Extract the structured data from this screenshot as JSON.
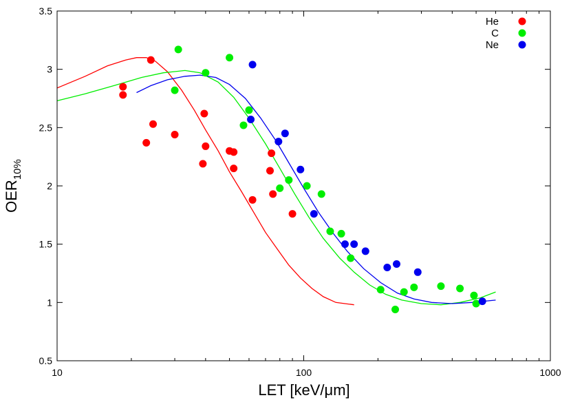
{
  "chart_data": {
    "type": "scatter",
    "xlabel": "LET [keV/μm]",
    "ylabel": "OER",
    "ylabel_sub": "10%",
    "x_scale": "log",
    "xlim": [
      10,
      1000
    ],
    "ylim": [
      0.5,
      3.5
    ],
    "x_ticks": [
      10,
      100,
      1000
    ],
    "x_tick_labels": [
      "10",
      "100",
      "1000"
    ],
    "y_ticks": [
      0.5,
      1,
      1.5,
      2,
      2.5,
      3,
      3.5
    ],
    "y_tick_labels": [
      "0.5",
      "1",
      "1.5",
      "2",
      "2.5",
      "3",
      "3.5"
    ],
    "grid": false,
    "legend_position": "top-right",
    "series": [
      {
        "name": "He",
        "color": "#ff0000",
        "points": [
          [
            18.5,
            2.85
          ],
          [
            18.5,
            2.78
          ],
          [
            23,
            2.37
          ],
          [
            24,
            3.08
          ],
          [
            24.5,
            2.53
          ],
          [
            30,
            2.44
          ],
          [
            39,
            2.19
          ],
          [
            39.5,
            2.62
          ],
          [
            40,
            2.34
          ],
          [
            50,
            2.3
          ],
          [
            52,
            2.29
          ],
          [
            52,
            2.15
          ],
          [
            62,
            1.88
          ],
          [
            73,
            2.13
          ],
          [
            74,
            2.28
          ],
          [
            75,
            1.93
          ],
          [
            90,
            1.76
          ]
        ],
        "curve": [
          [
            10,
            2.84
          ],
          [
            13,
            2.94
          ],
          [
            16,
            3.03
          ],
          [
            19,
            3.08
          ],
          [
            21,
            3.1
          ],
          [
            23,
            3.1
          ],
          [
            25,
            3.07
          ],
          [
            28,
            2.98
          ],
          [
            32,
            2.82
          ],
          [
            36,
            2.65
          ],
          [
            40,
            2.48
          ],
          [
            45,
            2.3
          ],
          [
            50,
            2.12
          ],
          [
            56,
            1.95
          ],
          [
            62,
            1.79
          ],
          [
            70,
            1.6
          ],
          [
            78,
            1.46
          ],
          [
            87,
            1.32
          ],
          [
            97,
            1.21
          ],
          [
            108,
            1.12
          ],
          [
            120,
            1.05
          ],
          [
            135,
            1.0
          ],
          [
            160,
            0.98
          ]
        ]
      },
      {
        "name": "C",
        "color": "#00ee00",
        "points": [
          [
            30,
            2.82
          ],
          [
            31,
            3.17
          ],
          [
            40,
            2.97
          ],
          [
            50,
            3.1
          ],
          [
            57,
            2.52
          ],
          [
            60,
            2.65
          ],
          [
            80,
            1.98
          ],
          [
            87,
            2.05
          ],
          [
            103,
            2.0
          ],
          [
            118,
            1.93
          ],
          [
            128,
            1.61
          ],
          [
            142,
            1.59
          ],
          [
            155,
            1.38
          ],
          [
            205,
            1.11
          ],
          [
            235,
            0.94
          ],
          [
            255,
            1.09
          ],
          [
            280,
            1.13
          ],
          [
            360,
            1.14
          ],
          [
            430,
            1.12
          ],
          [
            490,
            1.06
          ],
          [
            500,
            0.99
          ]
        ],
        "curve": [
          [
            10,
            2.73
          ],
          [
            13,
            2.79
          ],
          [
            17,
            2.86
          ],
          [
            22,
            2.93
          ],
          [
            27,
            2.97
          ],
          [
            33,
            2.99
          ],
          [
            38,
            2.97
          ],
          [
            45,
            2.89
          ],
          [
            52,
            2.76
          ],
          [
            60,
            2.58
          ],
          [
            70,
            2.36
          ],
          [
            80,
            2.15
          ],
          [
            92,
            1.93
          ],
          [
            105,
            1.73
          ],
          [
            120,
            1.55
          ],
          [
            140,
            1.38
          ],
          [
            160,
            1.26
          ],
          [
            185,
            1.15
          ],
          [
            215,
            1.07
          ],
          [
            250,
            1.02
          ],
          [
            300,
            0.99
          ],
          [
            360,
            0.98
          ],
          [
            430,
            1.0
          ],
          [
            520,
            1.04
          ],
          [
            600,
            1.09
          ]
        ]
      },
      {
        "name": "Ne",
        "color": "#0000ee",
        "points": [
          [
            61,
            2.57
          ],
          [
            62,
            3.04
          ],
          [
            79,
            2.38
          ],
          [
            84,
            2.45
          ],
          [
            97,
            2.14
          ],
          [
            110,
            1.76
          ],
          [
            147,
            1.5
          ],
          [
            160,
            1.5
          ],
          [
            178,
            1.44
          ],
          [
            218,
            1.3
          ],
          [
            238,
            1.33
          ],
          [
            290,
            1.26
          ],
          [
            530,
            1.01
          ]
        ],
        "curve": [
          [
            21,
            2.8
          ],
          [
            24,
            2.86
          ],
          [
            28,
            2.91
          ],
          [
            33,
            2.94
          ],
          [
            38,
            2.95
          ],
          [
            44,
            2.93
          ],
          [
            50,
            2.87
          ],
          [
            58,
            2.75
          ],
          [
            67,
            2.58
          ],
          [
            77,
            2.39
          ],
          [
            88,
            2.18
          ],
          [
            100,
            1.98
          ],
          [
            115,
            1.77
          ],
          [
            132,
            1.59
          ],
          [
            150,
            1.44
          ],
          [
            175,
            1.29
          ],
          [
            205,
            1.17
          ],
          [
            240,
            1.08
          ],
          [
            280,
            1.03
          ],
          [
            330,
            1.0
          ],
          [
            400,
            0.99
          ],
          [
            480,
            1.0
          ],
          [
            600,
            1.02
          ]
        ]
      }
    ]
  }
}
